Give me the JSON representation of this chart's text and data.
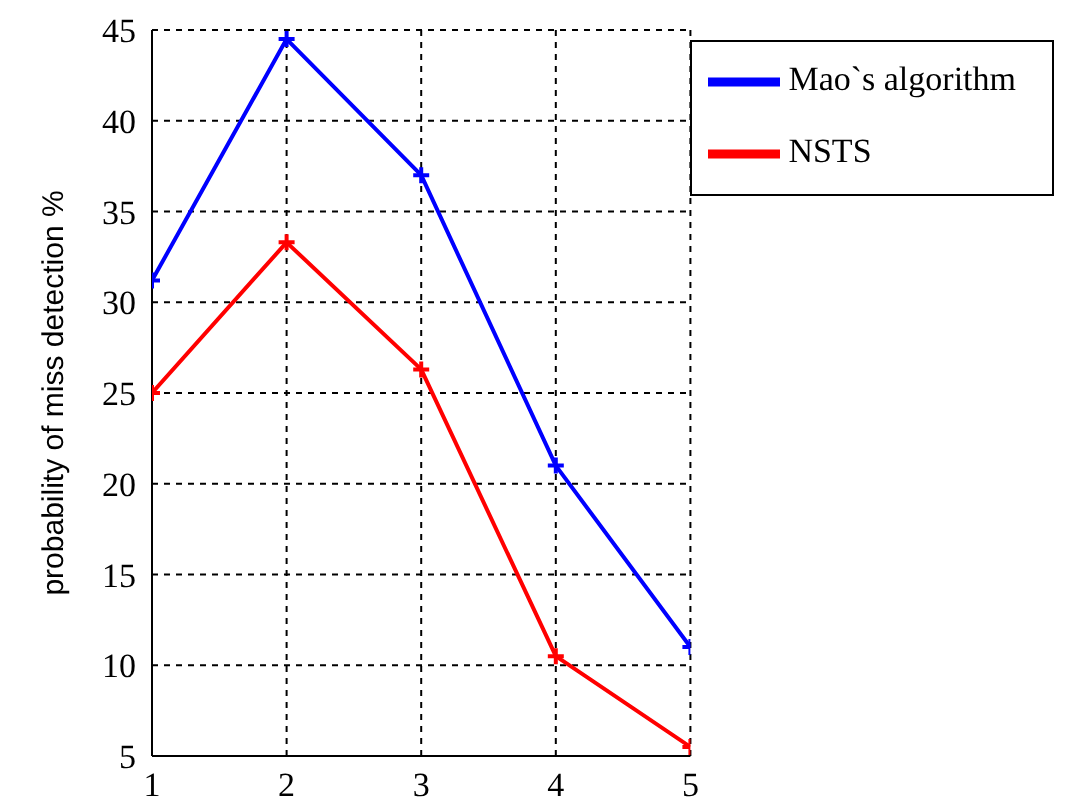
{
  "chart_data": {
    "type": "line",
    "ylabel": "probability of miss detection %",
    "x": [
      1,
      2,
      3,
      4,
      5
    ],
    "series": [
      {
        "name": "NSTS",
        "color": "#ff0000",
        "values": [
          25,
          33.3,
          26.3,
          10.5,
          5.5
        ]
      },
      {
        "name": "Mao`s algorithm",
        "color": "#0000ff",
        "values": [
          31.2,
          44.5,
          37,
          21,
          11
        ]
      }
    ],
    "xlim": [
      1,
      5
    ],
    "xticks": [
      1,
      2,
      3,
      4,
      5
    ],
    "ylim": [
      5,
      45
    ],
    "yticks": [
      5,
      10,
      15,
      20,
      25,
      30,
      35,
      40,
      45
    ],
    "grid": true,
    "legend": "top right",
    "marker": "cross",
    "line_style": "solid"
  }
}
